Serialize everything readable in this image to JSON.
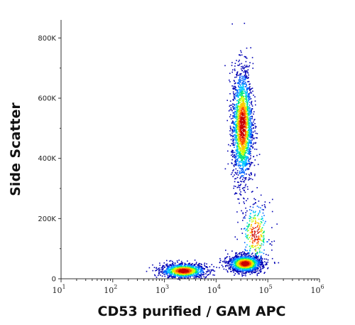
{
  "chart_data": {
    "type": "scatter",
    "subtype": "flow-cytometry-density-dot-plot",
    "xlabel": "CD53 purified / GAM APC",
    "ylabel": "Side Scatter",
    "x_scale": "log",
    "xlim": [
      10,
      1000000
    ],
    "ylim": [
      0,
      860000
    ],
    "x_ticks": [
      {
        "base": "10",
        "exp": "1"
      },
      {
        "base": "10",
        "exp": "2"
      },
      {
        "base": "10",
        "exp": "3"
      },
      {
        "base": "10",
        "exp": "4"
      },
      {
        "base": "10",
        "exp": "5"
      },
      {
        "base": "10",
        "exp": "6"
      }
    ],
    "x_tick_values": [
      10,
      100,
      1000,
      10000,
      100000,
      1000000
    ],
    "y_ticks": [
      "0",
      "200K",
      "400K",
      "600K",
      "800K"
    ],
    "y_tick_values": [
      0,
      200000,
      400000,
      600000,
      800000
    ],
    "grid": false,
    "legend": "none",
    "colormap": [
      "#0000b4",
      "#0064ff",
      "#00c8ff",
      "#00e678",
      "#c8ff00",
      "#ffc800",
      "#ff5000",
      "#c80000"
    ],
    "populations": [
      {
        "x_log_center": 3.36,
        "x_log_sd": 0.22,
        "y_center": 28000,
        "y_sd": 12000,
        "relative_density": 0.22
      },
      {
        "x_log_center": 4.55,
        "x_log_sd": 0.16,
        "y_center": 52000,
        "y_sd": 14000,
        "relative_density": 0.28
      },
      {
        "x_log_center": 4.5,
        "x_log_sd": 0.1,
        "y_center": 510000,
        "y_sd": 95000,
        "relative_density": 0.38
      },
      {
        "x_log_center": 4.75,
        "x_log_sd": 0.14,
        "y_center": 150000,
        "y_sd": 55000,
        "relative_density": 0.06
      }
    ]
  }
}
